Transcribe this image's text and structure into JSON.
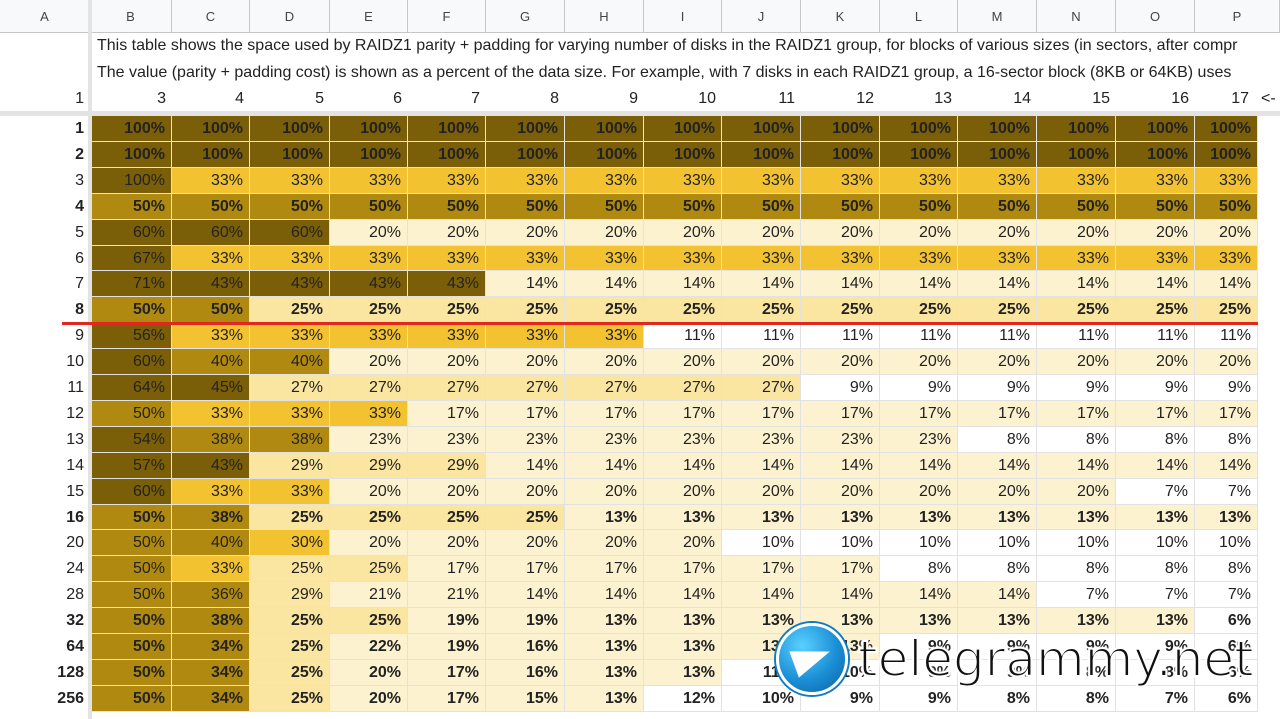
{
  "columns": [
    "A",
    "B",
    "C",
    "D",
    "E",
    "F",
    "G",
    "H",
    "I",
    "J",
    "K",
    "L",
    "M",
    "N",
    "O",
    "P"
  ],
  "note_line1": "This table shows the space used by RAIDZ1 parity + padding for varying number of disks in the RAIDZ1 group, for blocks of various sizes (in sectors, after compr",
  "note_line2": "The value (parity + padding cost) is shown as a percent of the data size.  For example, with 7 disks in each RAIDZ1 group, a 16-sector block (8KB or 64KB) uses",
  "header_row": {
    "a": "1",
    "disks": [
      "3",
      "4",
      "5",
      "6",
      "7",
      "8",
      "9",
      "10",
      "11",
      "12",
      "13",
      "14",
      "15",
      "16",
      "17"
    ],
    "overflow": "<-"
  },
  "colors": {
    "darkest": "#7a5f08",
    "dark": "#b08a10",
    "mid": "#f2c230",
    "light": "#fae6a0",
    "lighter": "#fdf2cf",
    "white": "#ffffff"
  },
  "rows": [
    {
      "label": "1",
      "bold": true,
      "values": [
        "100%",
        "100%",
        "100%",
        "100%",
        "100%",
        "100%",
        "100%",
        "100%",
        "100%",
        "100%",
        "100%",
        "100%",
        "100%",
        "100%",
        "100%"
      ]
    },
    {
      "label": "2",
      "bold": true,
      "values": [
        "100%",
        "100%",
        "100%",
        "100%",
        "100%",
        "100%",
        "100%",
        "100%",
        "100%",
        "100%",
        "100%",
        "100%",
        "100%",
        "100%",
        "100%"
      ]
    },
    {
      "label": "3",
      "bold": false,
      "values": [
        "100%",
        "33%",
        "33%",
        "33%",
        "33%",
        "33%",
        "33%",
        "33%",
        "33%",
        "33%",
        "33%",
        "33%",
        "33%",
        "33%",
        "33%"
      ]
    },
    {
      "label": "4",
      "bold": true,
      "values": [
        "50%",
        "50%",
        "50%",
        "50%",
        "50%",
        "50%",
        "50%",
        "50%",
        "50%",
        "50%",
        "50%",
        "50%",
        "50%",
        "50%",
        "50%"
      ]
    },
    {
      "label": "5",
      "bold": false,
      "values": [
        "60%",
        "60%",
        "60%",
        "20%",
        "20%",
        "20%",
        "20%",
        "20%",
        "20%",
        "20%",
        "20%",
        "20%",
        "20%",
        "20%",
        "20%"
      ]
    },
    {
      "label": "6",
      "bold": false,
      "values": [
        "67%",
        "33%",
        "33%",
        "33%",
        "33%",
        "33%",
        "33%",
        "33%",
        "33%",
        "33%",
        "33%",
        "33%",
        "33%",
        "33%",
        "33%"
      ]
    },
    {
      "label": "7",
      "bold": false,
      "values": [
        "71%",
        "43%",
        "43%",
        "43%",
        "43%",
        "14%",
        "14%",
        "14%",
        "14%",
        "14%",
        "14%",
        "14%",
        "14%",
        "14%",
        "14%"
      ]
    },
    {
      "label": "8",
      "bold": true,
      "values": [
        "50%",
        "50%",
        "25%",
        "25%",
        "25%",
        "25%",
        "25%",
        "25%",
        "25%",
        "25%",
        "25%",
        "25%",
        "25%",
        "25%",
        "25%"
      ]
    },
    {
      "label": "9",
      "bold": false,
      "values": [
        "56%",
        "33%",
        "33%",
        "33%",
        "33%",
        "33%",
        "33%",
        "11%",
        "11%",
        "11%",
        "11%",
        "11%",
        "11%",
        "11%",
        "11%"
      ]
    },
    {
      "label": "10",
      "bold": false,
      "values": [
        "60%",
        "40%",
        "40%",
        "20%",
        "20%",
        "20%",
        "20%",
        "20%",
        "20%",
        "20%",
        "20%",
        "20%",
        "20%",
        "20%",
        "20%"
      ]
    },
    {
      "label": "11",
      "bold": false,
      "values": [
        "64%",
        "45%",
        "27%",
        "27%",
        "27%",
        "27%",
        "27%",
        "27%",
        "27%",
        "9%",
        "9%",
        "9%",
        "9%",
        "9%",
        "9%"
      ]
    },
    {
      "label": "12",
      "bold": false,
      "values": [
        "50%",
        "33%",
        "33%",
        "33%",
        "17%",
        "17%",
        "17%",
        "17%",
        "17%",
        "17%",
        "17%",
        "17%",
        "17%",
        "17%",
        "17%"
      ]
    },
    {
      "label": "13",
      "bold": false,
      "values": [
        "54%",
        "38%",
        "38%",
        "23%",
        "23%",
        "23%",
        "23%",
        "23%",
        "23%",
        "23%",
        "23%",
        "8%",
        "8%",
        "8%",
        "8%"
      ]
    },
    {
      "label": "14",
      "bold": false,
      "values": [
        "57%",
        "43%",
        "29%",
        "29%",
        "29%",
        "14%",
        "14%",
        "14%",
        "14%",
        "14%",
        "14%",
        "14%",
        "14%",
        "14%",
        "14%"
      ]
    },
    {
      "label": "15",
      "bold": false,
      "values": [
        "60%",
        "33%",
        "33%",
        "20%",
        "20%",
        "20%",
        "20%",
        "20%",
        "20%",
        "20%",
        "20%",
        "20%",
        "20%",
        "7%",
        "7%"
      ]
    },
    {
      "label": "16",
      "bold": true,
      "values": [
        "50%",
        "38%",
        "25%",
        "25%",
        "25%",
        "25%",
        "13%",
        "13%",
        "13%",
        "13%",
        "13%",
        "13%",
        "13%",
        "13%",
        "13%"
      ]
    },
    {
      "label": "20",
      "bold": false,
      "values": [
        "50%",
        "40%",
        "30%",
        "20%",
        "20%",
        "20%",
        "20%",
        "20%",
        "10%",
        "10%",
        "10%",
        "10%",
        "10%",
        "10%",
        "10%"
      ]
    },
    {
      "label": "24",
      "bold": false,
      "values": [
        "50%",
        "33%",
        "25%",
        "25%",
        "17%",
        "17%",
        "17%",
        "17%",
        "17%",
        "17%",
        "8%",
        "8%",
        "8%",
        "8%",
        "8%"
      ]
    },
    {
      "label": "28",
      "bold": false,
      "values": [
        "50%",
        "36%",
        "29%",
        "21%",
        "21%",
        "14%",
        "14%",
        "14%",
        "14%",
        "14%",
        "14%",
        "14%",
        "7%",
        "7%",
        "7%"
      ]
    },
    {
      "label": "32",
      "bold": true,
      "values": [
        "50%",
        "38%",
        "25%",
        "25%",
        "19%",
        "19%",
        "13%",
        "13%",
        "13%",
        "13%",
        "13%",
        "13%",
        "13%",
        "13%",
        "6%"
      ]
    },
    {
      "label": "64",
      "bold": true,
      "values": [
        "50%",
        "34%",
        "25%",
        "22%",
        "19%",
        "16%",
        "13%",
        "13%",
        "13%",
        "13%",
        "9%",
        "9%",
        "9%",
        "9%",
        "6%"
      ]
    },
    {
      "label": "128",
      "bold": true,
      "values": [
        "50%",
        "34%",
        "25%",
        "20%",
        "17%",
        "16%",
        "13%",
        "13%",
        "11%",
        "10%",
        "9%",
        "9%",
        "8%",
        "8%",
        "6%"
      ]
    },
    {
      "label": "256",
      "bold": true,
      "values": [
        "50%",
        "34%",
        "25%",
        "20%",
        "17%",
        "15%",
        "13%",
        "12%",
        "10%",
        "9%",
        "9%",
        "8%",
        "8%",
        "7%",
        "6%"
      ]
    }
  ],
  "watermark": "telegrammy.net"
}
